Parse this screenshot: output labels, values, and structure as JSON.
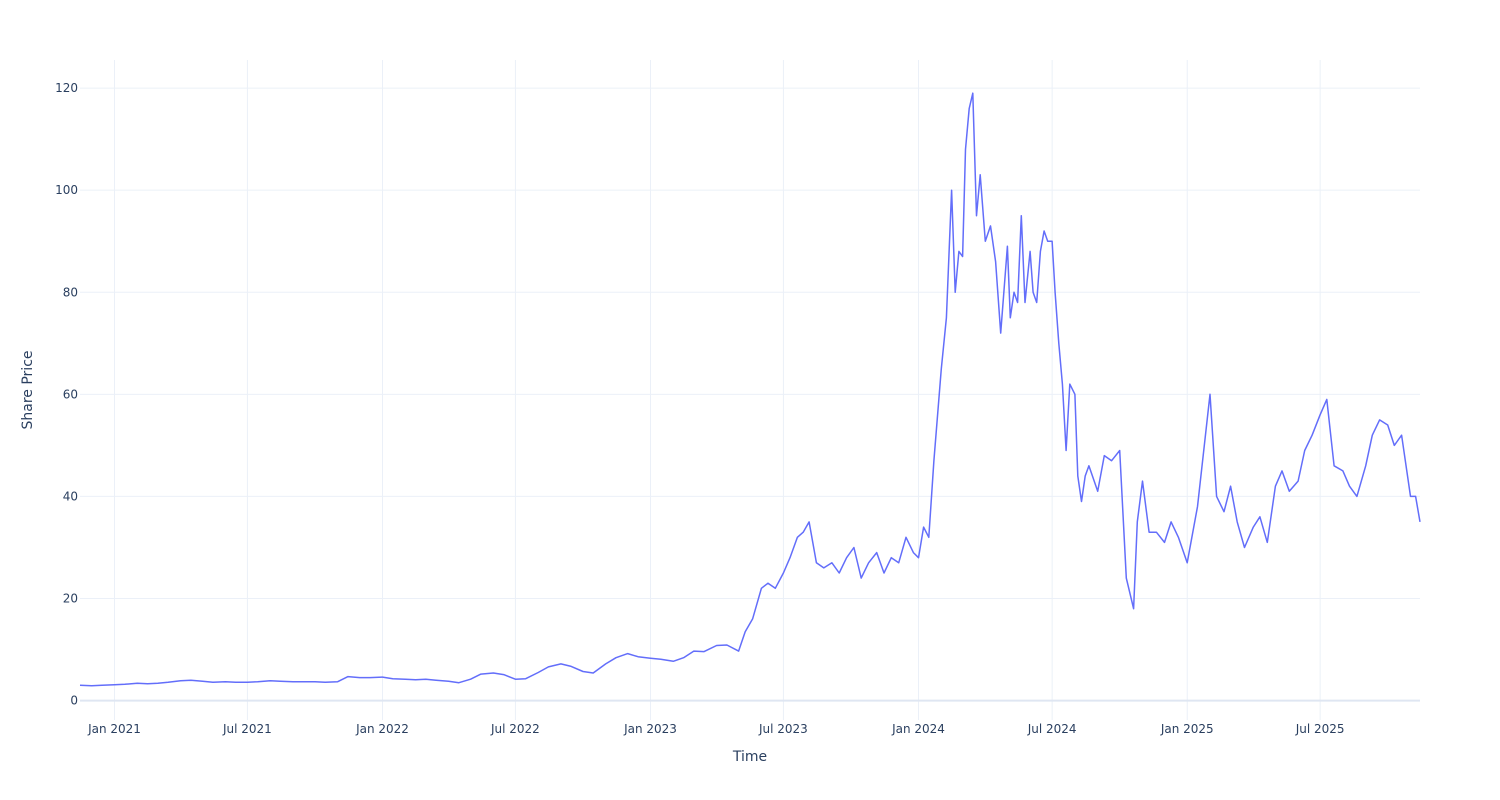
{
  "chart_data": {
    "type": "line",
    "title": "",
    "xlabel": "Time",
    "ylabel": "Share Price",
    "x_range": [
      "2020-11-15",
      "2025-11-14"
    ],
    "ylim": [
      -3.8,
      125.5
    ],
    "grid": true,
    "legend": "none",
    "line_color": "#636efa",
    "x_ticks": [
      {
        "date": "2021-01-01",
        "label": "Jan 2021"
      },
      {
        "date": "2021-07-01",
        "label": "Jul 2021"
      },
      {
        "date": "2022-01-01",
        "label": "Jan 2022"
      },
      {
        "date": "2022-07-01",
        "label": "Jul 2022"
      },
      {
        "date": "2023-01-01",
        "label": "Jan 2023"
      },
      {
        "date": "2023-07-01",
        "label": "Jul 2023"
      },
      {
        "date": "2024-01-01",
        "label": "Jan 2024"
      },
      {
        "date": "2024-07-01",
        "label": "Jul 2024"
      },
      {
        "date": "2025-01-01",
        "label": "Jan 2025"
      },
      {
        "date": "2025-07-01",
        "label": "Jul 2025"
      }
    ],
    "y_ticks": [
      {
        "value": 0,
        "label": "0"
      },
      {
        "value": 20,
        "label": "20"
      },
      {
        "value": 40,
        "label": "40"
      },
      {
        "value": 60,
        "label": "60"
      },
      {
        "value": 80,
        "label": "80"
      },
      {
        "value": 100,
        "label": "100"
      },
      {
        "value": 120,
        "label": "120"
      }
    ],
    "series": [
      {
        "x": [
          "2020-11-15",
          "2020-12-01",
          "2020-12-15",
          "2021-01-01",
          "2021-01-15",
          "2021-02-01",
          "2021-02-15",
          "2021-03-01",
          "2021-03-15",
          "2021-04-01",
          "2021-04-15",
          "2021-05-01",
          "2021-05-15",
          "2021-06-01",
          "2021-06-15",
          "2021-07-01",
          "2021-07-15",
          "2021-08-01",
          "2021-08-15",
          "2021-09-01",
          "2021-09-15",
          "2021-10-01",
          "2021-10-15",
          "2021-11-01",
          "2021-11-15",
          "2021-12-01",
          "2021-12-15",
          "2022-01-01",
          "2022-01-15",
          "2022-02-01",
          "2022-02-15",
          "2022-03-01",
          "2022-03-15",
          "2022-04-01",
          "2022-04-15",
          "2022-05-01",
          "2022-05-15",
          "2022-06-01",
          "2022-06-15",
          "2022-07-01",
          "2022-07-15",
          "2022-08-01",
          "2022-08-15",
          "2022-09-01",
          "2022-09-15",
          "2022-10-01",
          "2022-10-15",
          "2022-11-01",
          "2022-11-15",
          "2022-12-01",
          "2022-12-15",
          "2023-01-01",
          "2023-01-15",
          "2023-02-01",
          "2023-02-15",
          "2023-03-01",
          "2023-03-15",
          "2023-04-01",
          "2023-04-15",
          "2023-05-01",
          "2023-05-10",
          "2023-05-20",
          "2023-06-01",
          "2023-06-10",
          "2023-06-20",
          "2023-07-01",
          "2023-07-10",
          "2023-07-20",
          "2023-07-28",
          "2023-08-05",
          "2023-08-15",
          "2023-08-25",
          "2023-09-05",
          "2023-09-15",
          "2023-09-25",
          "2023-10-05",
          "2023-10-15",
          "2023-10-25",
          "2023-11-05",
          "2023-11-15",
          "2023-11-25",
          "2023-12-05",
          "2023-12-15",
          "2023-12-25",
          "2024-01-01",
          "2024-01-08",
          "2024-01-15",
          "2024-01-22",
          "2024-02-01",
          "2024-02-08",
          "2024-02-15",
          "2024-02-20",
          "2024-02-25",
          "2024-03-01",
          "2024-03-05",
          "2024-03-10",
          "2024-03-15",
          "2024-03-20",
          "2024-03-25",
          "2024-04-01",
          "2024-04-08",
          "2024-04-15",
          "2024-04-22",
          "2024-05-01",
          "2024-05-05",
          "2024-05-10",
          "2024-05-15",
          "2024-05-20",
          "2024-05-25",
          "2024-06-01",
          "2024-06-05",
          "2024-06-10",
          "2024-06-15",
          "2024-06-20",
          "2024-06-25",
          "2024-07-01",
          "2024-07-05",
          "2024-07-10",
          "2024-07-15",
          "2024-07-20",
          "2024-07-25",
          "2024-08-01",
          "2024-08-05",
          "2024-08-10",
          "2024-08-15",
          "2024-08-20",
          "2024-09-01",
          "2024-09-10",
          "2024-09-20",
          "2024-10-01",
          "2024-10-10",
          "2024-10-20",
          "2024-10-25",
          "2024-11-01",
          "2024-11-10",
          "2024-11-20",
          "2024-12-01",
          "2024-12-10",
          "2024-12-20",
          "2025-01-01",
          "2025-01-15",
          "2025-02-01",
          "2025-02-10",
          "2025-02-20",
          "2025-03-01",
          "2025-03-10",
          "2025-03-20",
          "2025-04-01",
          "2025-04-10",
          "2025-04-20",
          "2025-05-01",
          "2025-05-10",
          "2025-05-20",
          "2025-06-01",
          "2025-06-10",
          "2025-06-20",
          "2025-07-01",
          "2025-07-10",
          "2025-07-20",
          "2025-08-01",
          "2025-08-10",
          "2025-08-20",
          "2025-09-01",
          "2025-09-10",
          "2025-09-20",
          "2025-10-01",
          "2025-10-10",
          "2025-10-20",
          "2025-11-01",
          "2025-11-08",
          "2025-11-14"
        ],
        "values": [
          3.0,
          2.9,
          3.0,
          3.1,
          3.2,
          3.4,
          3.3,
          3.4,
          3.6,
          3.9,
          4.0,
          3.8,
          3.6,
          3.7,
          3.6,
          3.6,
          3.7,
          3.9,
          3.8,
          3.7,
          3.7,
          3.7,
          3.6,
          3.7,
          4.7,
          4.5,
          4.5,
          4.6,
          4.3,
          4.2,
          4.1,
          4.2,
          4.0,
          3.8,
          3.5,
          4.2,
          5.2,
          5.4,
          5.1,
          4.2,
          4.3,
          5.5,
          6.6,
          7.2,
          6.7,
          5.7,
          5.4,
          7.2,
          8.4,
          9.2,
          8.6,
          8.3,
          8.1,
          7.7,
          8.4,
          9.7,
          9.6,
          10.8,
          10.9,
          9.7,
          13.5,
          16.0,
          22.0,
          23.0,
          22.0,
          25.0,
          28.0,
          32.0,
          33.0,
          35.0,
          27.0,
          26.0,
          27.0,
          25.0,
          28.0,
          30.0,
          24.0,
          27.0,
          29.0,
          25.0,
          28.0,
          27.0,
          32.0,
          29.0,
          28.0,
          34.0,
          32.0,
          47.0,
          65.0,
          75.0,
          100.0,
          80.0,
          88.0,
          87.0,
          108.0,
          116.0,
          119.0,
          95.0,
          103.0,
          90.0,
          93.0,
          86.0,
          72.0,
          89.0,
          75.0,
          80.0,
          78.0,
          95.0,
          78.0,
          88.0,
          80.0,
          78.0,
          88.0,
          92.0,
          90.0,
          90.0,
          80.0,
          70.0,
          62.0,
          49.0,
          62.0,
          60.0,
          44.0,
          39.0,
          44.0,
          46.0,
          41.0,
          48.0,
          47.0,
          49.0,
          24.0,
          18.0,
          35.0,
          43.0,
          33.0,
          33.0,
          31.0,
          35.0,
          32.0,
          27.0,
          38.0,
          60.0,
          40.0,
          37.0,
          42.0,
          35.0,
          30.0,
          34.0,
          36.0,
          31.0,
          42.0,
          45.0,
          41.0,
          43.0,
          49.0,
          52.0,
          56.0,
          59.0,
          46.0,
          45.0,
          42.0,
          40.0,
          46.0,
          52.0,
          55.0,
          54.0,
          50.0,
          52.0,
          40.0,
          40.0,
          35.0
        ]
      }
    ]
  }
}
